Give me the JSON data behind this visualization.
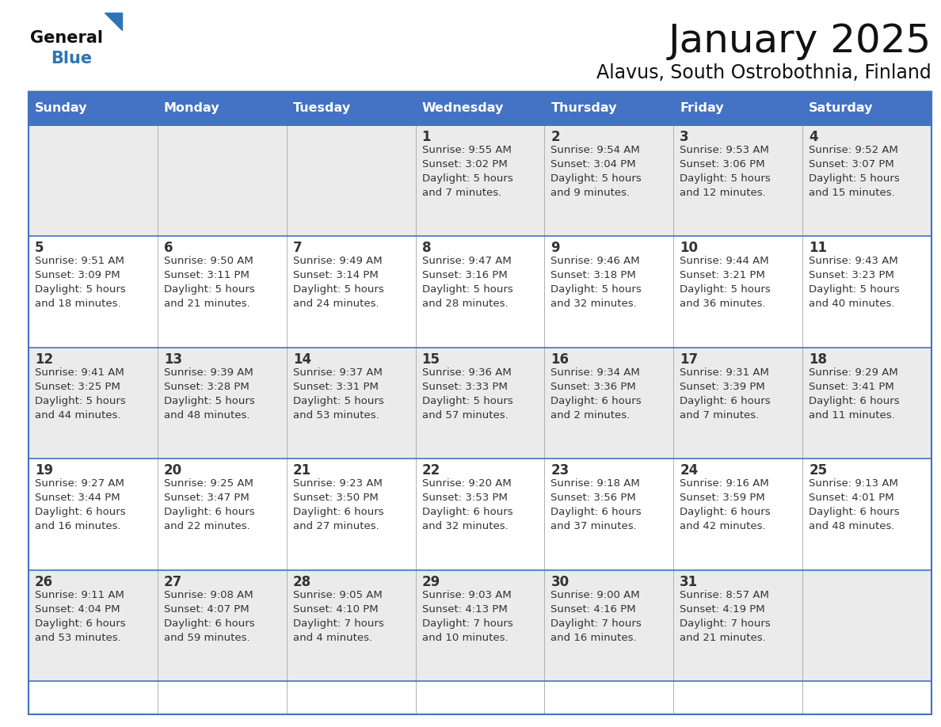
{
  "title": "January 2025",
  "subtitle": "Alavus, South Ostrobothnia, Finland",
  "days_of_week": [
    "Sunday",
    "Monday",
    "Tuesday",
    "Wednesday",
    "Thursday",
    "Friday",
    "Saturday"
  ],
  "header_bg": "#4472C4",
  "header_text": "#FFFFFF",
  "cell_bg_light": "#EBEBEB",
  "cell_bg_white": "#FFFFFF",
  "cell_text": "#333333",
  "day_num_color": "#333333",
  "border_color": "#4472C4",
  "sep_color": "#B0B0B0",
  "title_color": "#111111",
  "subtitle_color": "#111111",
  "logo_general_color": "#111111",
  "logo_blue_color": "#2E75B6",
  "weeks": [
    {
      "bg": "light",
      "days": [
        {
          "day": null,
          "info": null
        },
        {
          "day": null,
          "info": null
        },
        {
          "day": null,
          "info": null
        },
        {
          "day": "1",
          "info": "Sunrise: 9:55 AM\nSunset: 3:02 PM\nDaylight: 5 hours\nand 7 minutes."
        },
        {
          "day": "2",
          "info": "Sunrise: 9:54 AM\nSunset: 3:04 PM\nDaylight: 5 hours\nand 9 minutes."
        },
        {
          "day": "3",
          "info": "Sunrise: 9:53 AM\nSunset: 3:06 PM\nDaylight: 5 hours\nand 12 minutes."
        },
        {
          "day": "4",
          "info": "Sunrise: 9:52 AM\nSunset: 3:07 PM\nDaylight: 5 hours\nand 15 minutes."
        }
      ]
    },
    {
      "bg": "white",
      "days": [
        {
          "day": "5",
          "info": "Sunrise: 9:51 AM\nSunset: 3:09 PM\nDaylight: 5 hours\nand 18 minutes."
        },
        {
          "day": "6",
          "info": "Sunrise: 9:50 AM\nSunset: 3:11 PM\nDaylight: 5 hours\nand 21 minutes."
        },
        {
          "day": "7",
          "info": "Sunrise: 9:49 AM\nSunset: 3:14 PM\nDaylight: 5 hours\nand 24 minutes."
        },
        {
          "day": "8",
          "info": "Sunrise: 9:47 AM\nSunset: 3:16 PM\nDaylight: 5 hours\nand 28 minutes."
        },
        {
          "day": "9",
          "info": "Sunrise: 9:46 AM\nSunset: 3:18 PM\nDaylight: 5 hours\nand 32 minutes."
        },
        {
          "day": "10",
          "info": "Sunrise: 9:44 AM\nSunset: 3:21 PM\nDaylight: 5 hours\nand 36 minutes."
        },
        {
          "day": "11",
          "info": "Sunrise: 9:43 AM\nSunset: 3:23 PM\nDaylight: 5 hours\nand 40 minutes."
        }
      ]
    },
    {
      "bg": "light",
      "days": [
        {
          "day": "12",
          "info": "Sunrise: 9:41 AM\nSunset: 3:25 PM\nDaylight: 5 hours\nand 44 minutes."
        },
        {
          "day": "13",
          "info": "Sunrise: 9:39 AM\nSunset: 3:28 PM\nDaylight: 5 hours\nand 48 minutes."
        },
        {
          "day": "14",
          "info": "Sunrise: 9:37 AM\nSunset: 3:31 PM\nDaylight: 5 hours\nand 53 minutes."
        },
        {
          "day": "15",
          "info": "Sunrise: 9:36 AM\nSunset: 3:33 PM\nDaylight: 5 hours\nand 57 minutes."
        },
        {
          "day": "16",
          "info": "Sunrise: 9:34 AM\nSunset: 3:36 PM\nDaylight: 6 hours\nand 2 minutes."
        },
        {
          "day": "17",
          "info": "Sunrise: 9:31 AM\nSunset: 3:39 PM\nDaylight: 6 hours\nand 7 minutes."
        },
        {
          "day": "18",
          "info": "Sunrise: 9:29 AM\nSunset: 3:41 PM\nDaylight: 6 hours\nand 11 minutes."
        }
      ]
    },
    {
      "bg": "white",
      "days": [
        {
          "day": "19",
          "info": "Sunrise: 9:27 AM\nSunset: 3:44 PM\nDaylight: 6 hours\nand 16 minutes."
        },
        {
          "day": "20",
          "info": "Sunrise: 9:25 AM\nSunset: 3:47 PM\nDaylight: 6 hours\nand 22 minutes."
        },
        {
          "day": "21",
          "info": "Sunrise: 9:23 AM\nSunset: 3:50 PM\nDaylight: 6 hours\nand 27 minutes."
        },
        {
          "day": "22",
          "info": "Sunrise: 9:20 AM\nSunset: 3:53 PM\nDaylight: 6 hours\nand 32 minutes."
        },
        {
          "day": "23",
          "info": "Sunrise: 9:18 AM\nSunset: 3:56 PM\nDaylight: 6 hours\nand 37 minutes."
        },
        {
          "day": "24",
          "info": "Sunrise: 9:16 AM\nSunset: 3:59 PM\nDaylight: 6 hours\nand 42 minutes."
        },
        {
          "day": "25",
          "info": "Sunrise: 9:13 AM\nSunset: 4:01 PM\nDaylight: 6 hours\nand 48 minutes."
        }
      ]
    },
    {
      "bg": "light",
      "days": [
        {
          "day": "26",
          "info": "Sunrise: 9:11 AM\nSunset: 4:04 PM\nDaylight: 6 hours\nand 53 minutes."
        },
        {
          "day": "27",
          "info": "Sunrise: 9:08 AM\nSunset: 4:07 PM\nDaylight: 6 hours\nand 59 minutes."
        },
        {
          "day": "28",
          "info": "Sunrise: 9:05 AM\nSunset: 4:10 PM\nDaylight: 7 hours\nand 4 minutes."
        },
        {
          "day": "29",
          "info": "Sunrise: 9:03 AM\nSunset: 4:13 PM\nDaylight: 7 hours\nand 10 minutes."
        },
        {
          "day": "30",
          "info": "Sunrise: 9:00 AM\nSunset: 4:16 PM\nDaylight: 7 hours\nand 16 minutes."
        },
        {
          "day": "31",
          "info": "Sunrise: 8:57 AM\nSunset: 4:19 PM\nDaylight: 7 hours\nand 21 minutes."
        },
        {
          "day": null,
          "info": null
        }
      ]
    }
  ]
}
